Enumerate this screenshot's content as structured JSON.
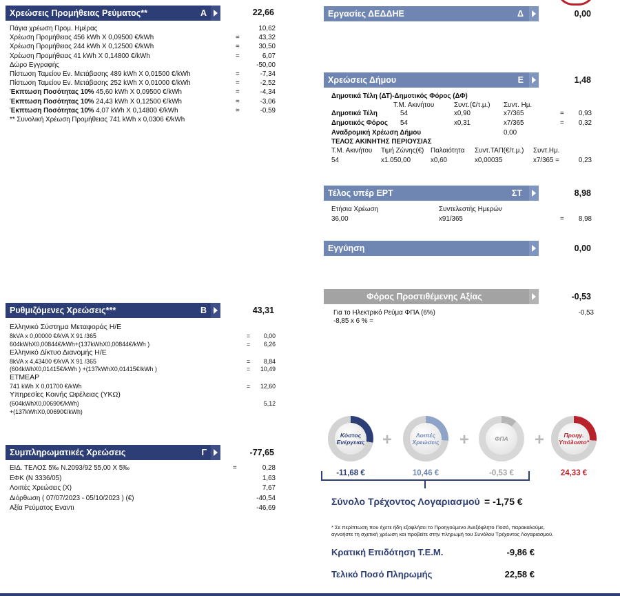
{
  "left": {
    "supply": {
      "title": "Χρεώσεις Προμήθειας Ρεύματος**",
      "letter": "Α",
      "total": "22,66",
      "rows": [
        {
          "label": "Πάγια χρέωση Προμ. Ημέρας",
          "eq": "",
          "value": "10,62"
        },
        {
          "label": "Χρέωση Προμήθειας 456 kWh X 0,09500 €/kWh",
          "eq": "=",
          "value": "43,32"
        },
        {
          "label": "Χρέωση Προμήθειας 244 kWh X 0,12500 €/kWh",
          "eq": "=",
          "value": "30,50"
        },
        {
          "label": "Χρέωση Προμήθειας 41 kWh X 0,14800 €/kWh",
          "eq": "=",
          "value": "6,07"
        },
        {
          "label": "Δώρο Εγγραφής",
          "eq": "",
          "value": "-50,00"
        },
        {
          "label": "Πίστωση Ταμείου Εν. Μετάβασης 489 kWh X 0,01500 €/kWh",
          "eq": "=",
          "value": "-7,34"
        },
        {
          "label": "Πίστωση Ταμείου Εν. Μετάβασης 252 kWh X 0,01000 €/kWh",
          "eq": "=",
          "value": "-2,52"
        },
        {
          "label": "Έκπτωση Ποσότητας 10% 45,60 kWh X 0,09500 €/kWh",
          "eq": "=",
          "value": "-4,34"
        },
        {
          "label": "Έκπτωση Ποσότητας 10% 24,43 kWh X 0,12500 €/kWh",
          "eq": "=",
          "value": "-3,06"
        },
        {
          "label": "Έκπτωση Ποσότητας 10% 4,07 kWh X 0,14800 €/kWh",
          "eq": "=",
          "value": "-0,59"
        },
        {
          "label": "** Συνολική Χρέωση Προμήθειας 741 kWh x 0,0306 €/kWh",
          "eq": "",
          "value": ""
        }
      ]
    },
    "regulated": {
      "title": "Ρυθμιζόμενες Χρεώσεις***",
      "letter": "Β",
      "total": "43,31",
      "hts_title": "Ελληνικό Σύστημα Μεταφοράς Η/Ε",
      "hts_line1": "8kVA x 0,00000 €/kVA X 91 /365",
      "hts_line1_value": "0,00",
      "hts_line2": "604kWhX0,00844€/kWh+(137kWhX0,00844€/kWh )",
      "hts_line2_value": "6,26",
      "hedno_title": "Ελληνικό Δίκτυο Διανομής Η/Ε",
      "hedno_line1": "8kVA x 4,43400 €/kVA X 91 /365",
      "hedno_line1_value": "8,84",
      "hedno_line2": "(604kWhX0,01415€/kWh ) +(137kWhX0,01415€/kWh )",
      "hedno_line2_value": "10,49",
      "etmear_title": "ΕΤΜΕΑΡ",
      "etmear_line": "741 kWh X 0,01700 €/kWh",
      "etmear_value": "12,60",
      "yko_title": "Υπηρεσίες Κοινής Ωφέλειας (ΥΚΩ)",
      "yko_line1": "(604kWhX0,00690€/kWh)",
      "yko_line2": "+(137kWhX0,00690€/kWh)",
      "yko_value": "5,12"
    },
    "misc": {
      "title": "Συμπληρωματικές Χρεώσεις",
      "letter": "Γ",
      "total": "-77,65",
      "rows": [
        {
          "label": "ΕΙΔ. ΤΕΛΟΣ 5‰ Ν.2093/92 55,00 X 5‰",
          "eq": "=",
          "value": "0,28"
        },
        {
          "label": "ΕΦΚ (Ν 3336/05)",
          "eq": "",
          "value": "1,63"
        },
        {
          "label": "Λοιπές Χρεώσεις (Χ)",
          "eq": "",
          "value": "7,67"
        },
        {
          "label": "Διόρθωση ( 07/07/2023 - 05/10/2023 ) (€)",
          "eq": "",
          "value": "-40,54"
        },
        {
          "label": "Αξία Ρεύματος Εναντι",
          "eq": "",
          "value": "-46,69"
        }
      ]
    }
  },
  "right": {
    "deddie": {
      "title": "Εργασίες ΔΕΔΔΗΕ",
      "letter": "Δ",
      "total": "0,00"
    },
    "municipal": {
      "title": "Χρεώσεις Δήμου",
      "letter": "Ε",
      "total": "1,48",
      "subtitle": "Δημοτικά Τέλη (ΔΤ)-Δημοτικός Φόρος (ΔΦ)",
      "hdr_area": "Τ.Μ. Ακινήτου",
      "hdr_coef": "Συντ.(€/τ.μ.)",
      "hdr_days": "Συντ. Ημ.",
      "dt_label": "Δημοτικά Τέλη",
      "dt_area": "54",
      "dt_coef": "x0,90",
      "dt_days": "x7/365",
      "dt_value": "0,93",
      "df_label": "Δημοτικός Φόρος",
      "df_area": "54",
      "df_coef": "x0,31",
      "df_days": "x7/365",
      "df_value": "0,32",
      "retro_label": "Αναδρομική Χρέωση Δήμου",
      "retro_value": "0,00",
      "tap_title": "ΤΕΛΟΣ ΑΚΙΝΗΤΗΣ ΠΕΡΙΟΥΣΙΑΣ",
      "tap_h1": "Τ.Μ. Ακινήτου",
      "tap_h2": "Τιμή Ζώνης(€)",
      "tap_h3": "Παλαιότητα",
      "tap_h4": "Συντ.ΤΑΠ(€/τ.μ.)",
      "tap_h5": "Συντ.Ημ.",
      "tap_v1": "54",
      "tap_v2": "x1.050,00",
      "tap_v3": "x0,60",
      "tap_v4": "x0,00035",
      "tap_v5": "x7/365 =",
      "tap_value": "0,23"
    },
    "ert": {
      "title": "Τέλος υπέρ ΕΡΤ",
      "letter": "ΣΤ",
      "total": "8,98",
      "h1": "Ετήσια Χρέωση",
      "h2": "Συντελεστής Ημερών",
      "v1": "36,00",
      "v2": "x91/365",
      "value": "8,98"
    },
    "guarantee": {
      "title": "Εγγύηση",
      "total": "0,00"
    },
    "vat": {
      "title": "Φόρος Προστιθέμενης Αξίας",
      "total": "-0,53",
      "line1": "Για το Ηλεκτρικό Ρεύμα ΦΠΑ (6%)",
      "line1_value": "-0,53",
      "line2": "-8,85 x 6 % ="
    },
    "summary": {
      "c1_label1": "Κόστος",
      "c1_label2": "Ενέργειας",
      "c1_value": "-11,68 €",
      "c2_label1": "Λοιπές",
      "c2_label2": "Χρεώσεις",
      "c2_value": "10,46 €",
      "c3_label": "ΦΠΑ",
      "c3_value": "-0,53 €",
      "c4_label1": "Προηγ.",
      "c4_label2": "Υπόλοιπο*",
      "c4_value": "24,33 €",
      "plus": "+",
      "total_label": "Σύνολο Τρέχοντος Λογαριασμού",
      "total_value": "= -1,75 €",
      "note_line1": "* Σε περίπτωση που έχετε ήδη εξοφλήσει το Προηγούμενο Ανεξόφλητο Ποσό, παρακαλούμε,",
      "note_line2": "αγνοήστε τη σχετική χρέωση και προβείτε στην πληρωμή του Συνόλου Τρέχοντος Λογαριασμού.",
      "subsidy_label": "Κρατική Επιδότηση Τ.Ε.Μ.",
      "subsidy_value": "-9,86 €",
      "final_label": "Τελικό Ποσό Πληρωμής",
      "final_value": "22,58 €"
    },
    "colors": {
      "navy": "#2c3e75",
      "light_blue": "#6f86b3",
      "grey": "#a3a3a3",
      "red": "#b8222b"
    }
  }
}
